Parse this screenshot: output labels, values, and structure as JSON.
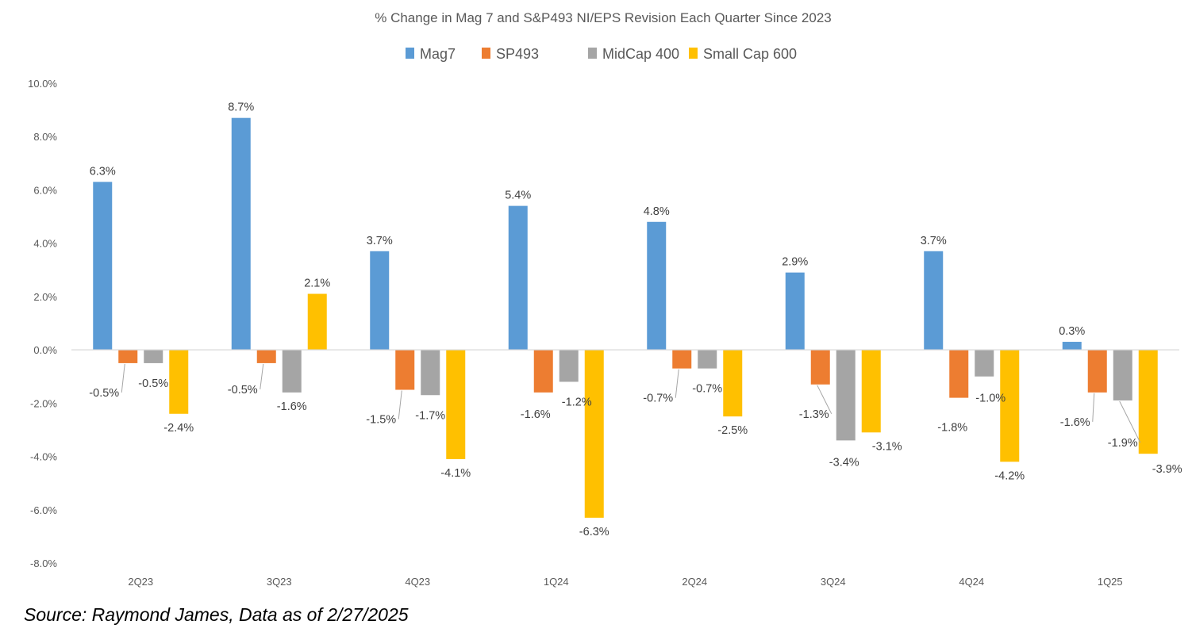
{
  "chart_data": {
    "type": "bar",
    "title": "% Change in Mag 7 and S&P493 NI/EPS Revision Each Quarter Since 2023",
    "xlabel": "",
    "ylabel": "",
    "categories": [
      "2Q23",
      "3Q23",
      "4Q23",
      "1Q24",
      "2Q24",
      "3Q24",
      "4Q24",
      "1Q25"
    ],
    "series": [
      {
        "name": "Mag7",
        "color": "#5B9BD5",
        "values": [
          6.3,
          8.7,
          3.7,
          5.4,
          4.8,
          2.9,
          3.7,
          0.3
        ]
      },
      {
        "name": "SP493",
        "color": "#ED7D31",
        "values": [
          -0.5,
          -0.5,
          -1.5,
          -1.6,
          -0.7,
          -1.3,
          -1.8,
          -1.6
        ]
      },
      {
        "name": "MidCap 400",
        "color": "#A5A5A5",
        "values": [
          -0.5,
          -1.6,
          -1.7,
          -1.2,
          -0.7,
          -3.4,
          -1.0,
          -1.9
        ]
      },
      {
        "name": "Small Cap 600",
        "color": "#FFC000",
        "values": [
          -2.4,
          2.1,
          -4.1,
          -6.3,
          -2.5,
          -3.1,
          -4.2,
          -3.9
        ]
      }
    ],
    "ylim": [
      -8.0,
      10.0
    ],
    "yticks": [
      10.0,
      8.0,
      6.0,
      4.0,
      2.0,
      0.0,
      -2.0,
      -4.0,
      -6.0,
      -8.0
    ],
    "ytick_labels": [
      "10.0%",
      "8.0%",
      "6.0%",
      "4.0%",
      "2.0%",
      "0.0%",
      "-2.0%",
      "-4.0%",
      "-6.0%",
      "-8.0%"
    ],
    "value_suffix": "%",
    "grid": false,
    "legend_position": "top-center",
    "data_labels": true
  },
  "footer": {
    "source": "Source: Raymond James, Data as of 2/27/2025"
  }
}
